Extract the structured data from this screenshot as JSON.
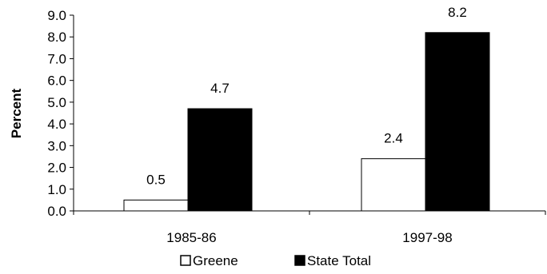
{
  "chart_data": {
    "type": "bar",
    "categories": [
      "1985-86",
      "1997-98"
    ],
    "series": [
      {
        "name": "Greene",
        "values": [
          0.5,
          2.4
        ],
        "color": "#ffffff"
      },
      {
        "name": "State Total",
        "values": [
          4.7,
          8.2
        ],
        "color": "#000000"
      }
    ],
    "data_labels": [
      [
        "0.5",
        "2.4"
      ],
      [
        "4.7",
        "8.2"
      ]
    ],
    "y_ticks": [
      "0.0",
      "1.0",
      "2.0",
      "3.0",
      "4.0",
      "5.0",
      "6.0",
      "7.0",
      "8.0",
      "9.0"
    ],
    "ylim": [
      0,
      9
    ],
    "ylabel": "Percent",
    "xlabel": "",
    "title": "",
    "legend_position": "bottom",
    "grid": false
  }
}
